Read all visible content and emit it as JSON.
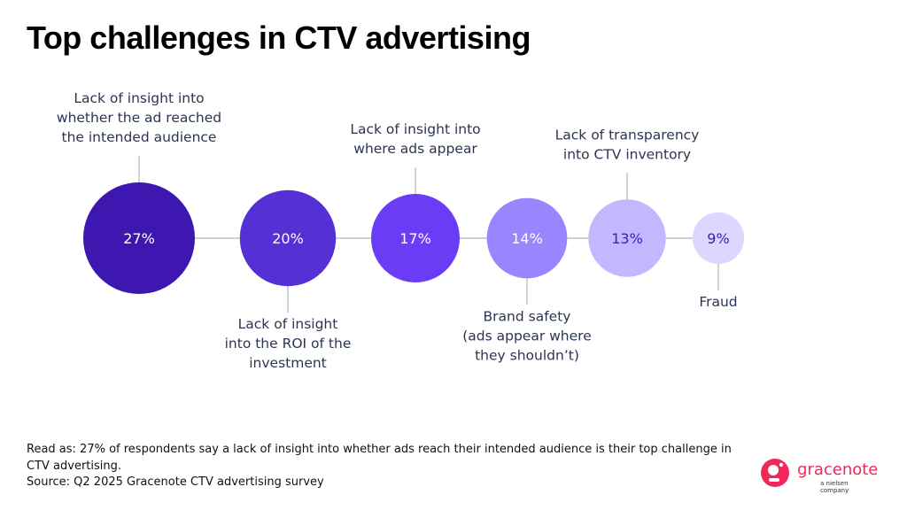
{
  "title": "Top challenges in CTV advertising",
  "chart_data": {
    "type": "bubble",
    "title": "Top challenges in CTV advertising",
    "unit": "%",
    "items": [
      {
        "label_lines": [
          "Lack of insight into",
          "whether the ad reached",
          "the intended audience"
        ],
        "value": 27,
        "display": "27%",
        "label_position": "above",
        "color": "#3d17b0",
        "text_color": "#ffffff"
      },
      {
        "label_lines": [
          "Lack of insight",
          "into the ROI of the",
          "investment"
        ],
        "value": 20,
        "display": "20%",
        "label_position": "below",
        "color": "#5530d4",
        "text_color": "#ffffff"
      },
      {
        "label_lines": [
          "Lack of insight into",
          "where ads appear"
        ],
        "value": 17,
        "display": "17%",
        "label_position": "above",
        "color": "#6a3cf5",
        "text_color": "#ffffff"
      },
      {
        "label_lines": [
          "Brand safety",
          "(ads appear where",
          "they shouldn’t)"
        ],
        "value": 14,
        "display": "14%",
        "label_position": "below",
        "color": "#9886ff",
        "text_color": "#ffffff"
      },
      {
        "label_lines": [
          "Lack of transparency",
          "into CTV inventory"
        ],
        "value": 13,
        "display": "13%",
        "label_position": "above",
        "color": "#c2b8ff",
        "text_color": "#3c1fa8"
      },
      {
        "label_lines": [
          "Fraud"
        ],
        "value": 9,
        "display": "9%",
        "label_position": "below",
        "color": "#ddd6ff",
        "text_color": "#3c1fa8"
      }
    ],
    "connector_color": "#b4b4bc"
  },
  "footnote": {
    "read_as": "Read as: 27% of respondents say a lack of insight into whether ads reach their intended audience is their top challenge in CTV advertising.",
    "source": "Source: Q2 2025 Gracenote CTV advertising survey"
  },
  "logo": {
    "name": "gracenote",
    "tagline": "a nielsen company",
    "color": "#f0285a"
  }
}
